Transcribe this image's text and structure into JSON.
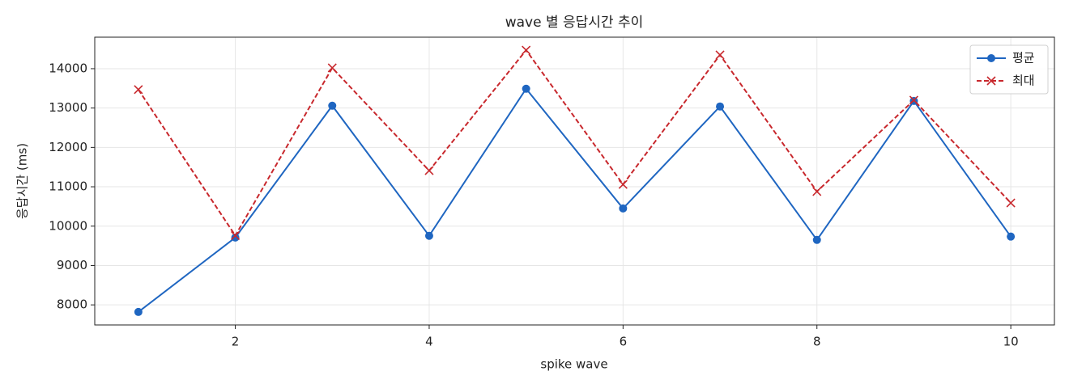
{
  "chart_data": {
    "type": "line",
    "title": "wave 별 응답시간 추이",
    "xlabel": "spike wave",
    "ylabel": "응답시간 (ms)",
    "x": [
      1,
      2,
      3,
      4,
      5,
      6,
      7,
      8,
      9,
      10
    ],
    "series": [
      {
        "name": "평균",
        "color": "#1f66c1",
        "marker": "o",
        "dash": "solid",
        "values": [
          7820,
          9710,
          13060,
          9755,
          13490,
          10450,
          13040,
          9650,
          13180,
          9735
        ]
      },
      {
        "name": "최대",
        "color": "#c8282d",
        "marker": "x",
        "dash": "dashed",
        "values": [
          13470,
          9760,
          14020,
          11410,
          14470,
          11060,
          14350,
          10880,
          13200,
          10590
        ]
      }
    ],
    "xlim": [
      0.55,
      10.45
    ],
    "xticks": [
      2,
      4,
      6,
      8,
      10
    ],
    "ylim": [
      7490,
      14800
    ],
    "yticks": [
      8000,
      9000,
      10000,
      11000,
      12000,
      13000,
      14000
    ],
    "grid": true,
    "legend": "upper right"
  }
}
